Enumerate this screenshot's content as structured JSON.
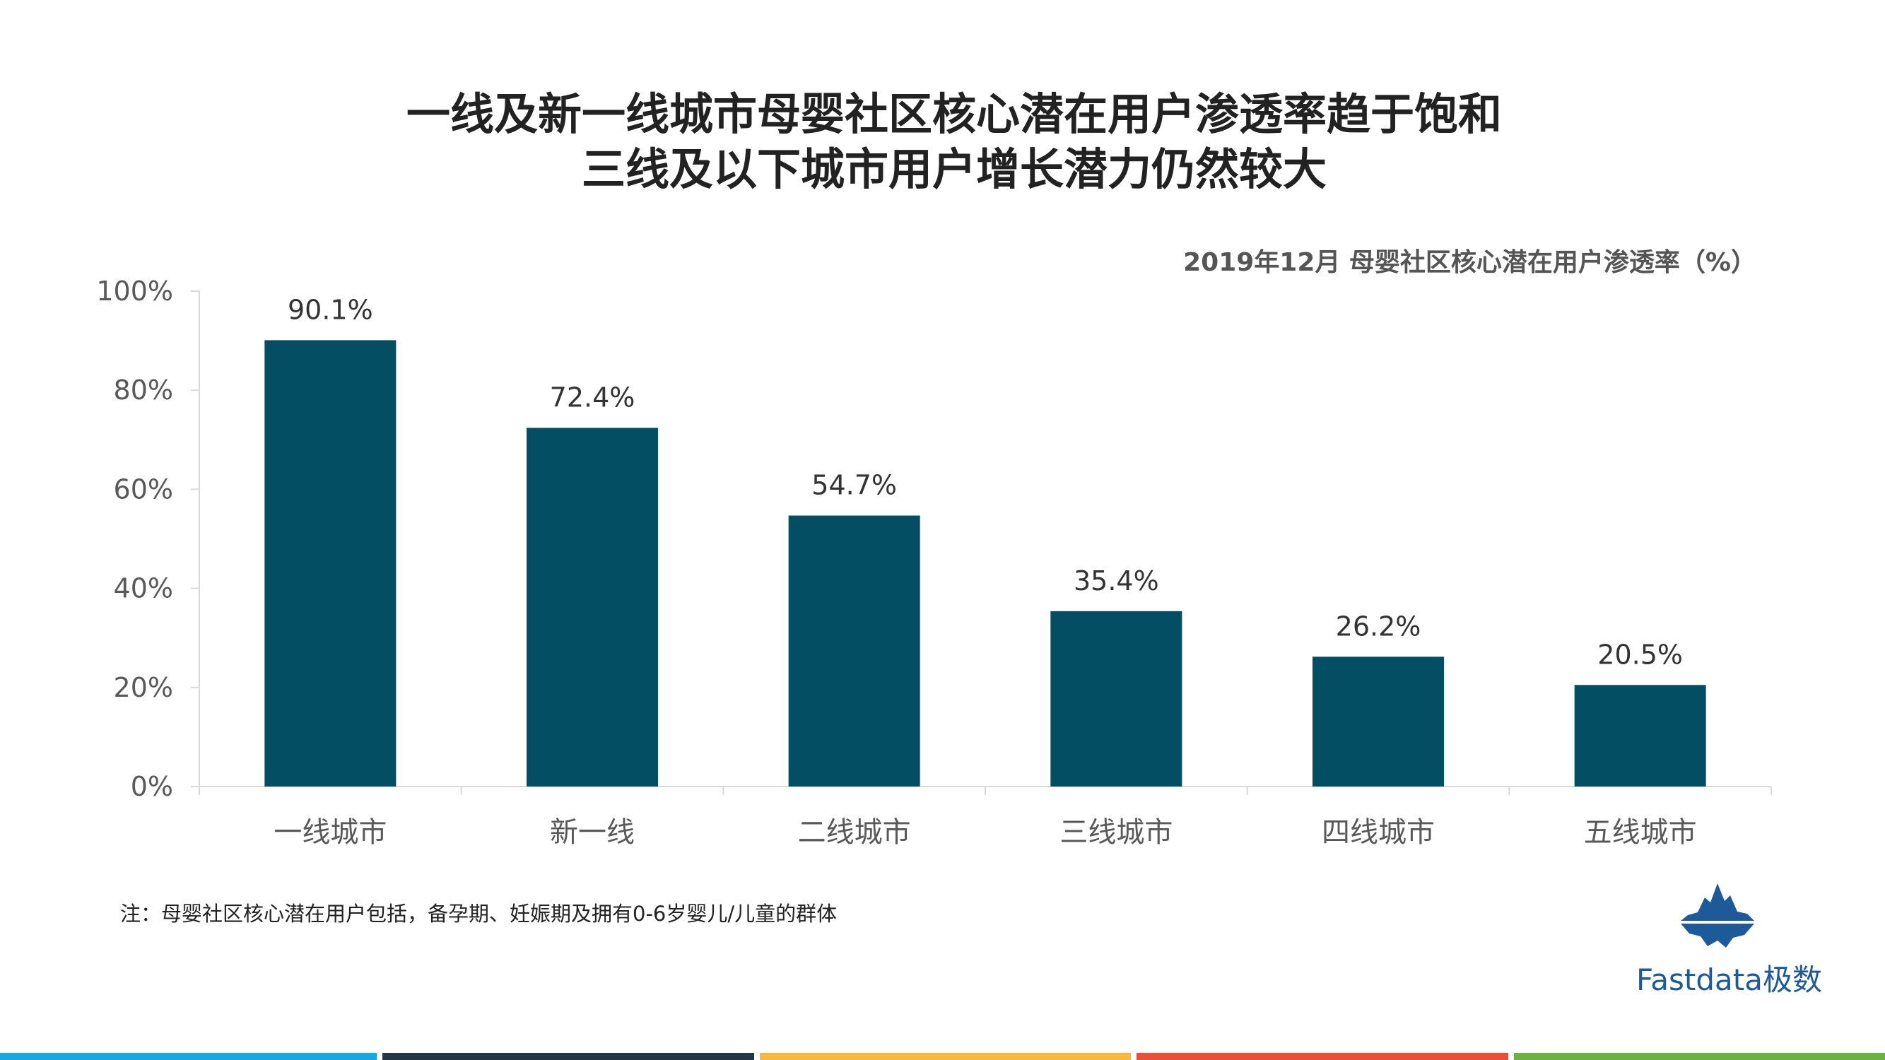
{
  "title_lines": [
    "一线及新一线城市母婴社区核心潜在用户渗透率趋于饱和",
    "三线及以下城市用户增长潜力仍然较大"
  ],
  "subtitle": "2019年12月 母婴社区核心潜在用户渗透率（%）",
  "chart_data": {
    "type": "bar",
    "categories": [
      "一线城市",
      "新一线",
      "二线城市",
      "三线城市",
      "四线城市",
      "五线城市"
    ],
    "values": [
      90.1,
      72.4,
      54.7,
      35.4,
      26.2,
      20.5
    ],
    "value_labels": [
      "90.1%",
      "72.4%",
      "54.7%",
      "35.4%",
      "26.2%",
      "20.5%"
    ],
    "ylim": [
      0,
      100
    ],
    "yticks": [
      0,
      20,
      40,
      60,
      80,
      100
    ],
    "ytick_labels": [
      "0%",
      "20%",
      "40%",
      "60%",
      "80%",
      "100%"
    ],
    "bar_color": "#044e64",
    "grid": false,
    "legend": "none"
  },
  "note": "注：母婴社区核心潜在用户包括，备孕期、妊娠期及拥有0-6岁婴儿/儿童的群体",
  "logo": {
    "text": "Fastdata极数",
    "color": "#1d5a9a",
    "icon": "iceberg-logo-icon"
  },
  "footer_colors": [
    "#1aa6df",
    "#243746",
    "#f5b940",
    "#e9503c",
    "#6cb046"
  ]
}
